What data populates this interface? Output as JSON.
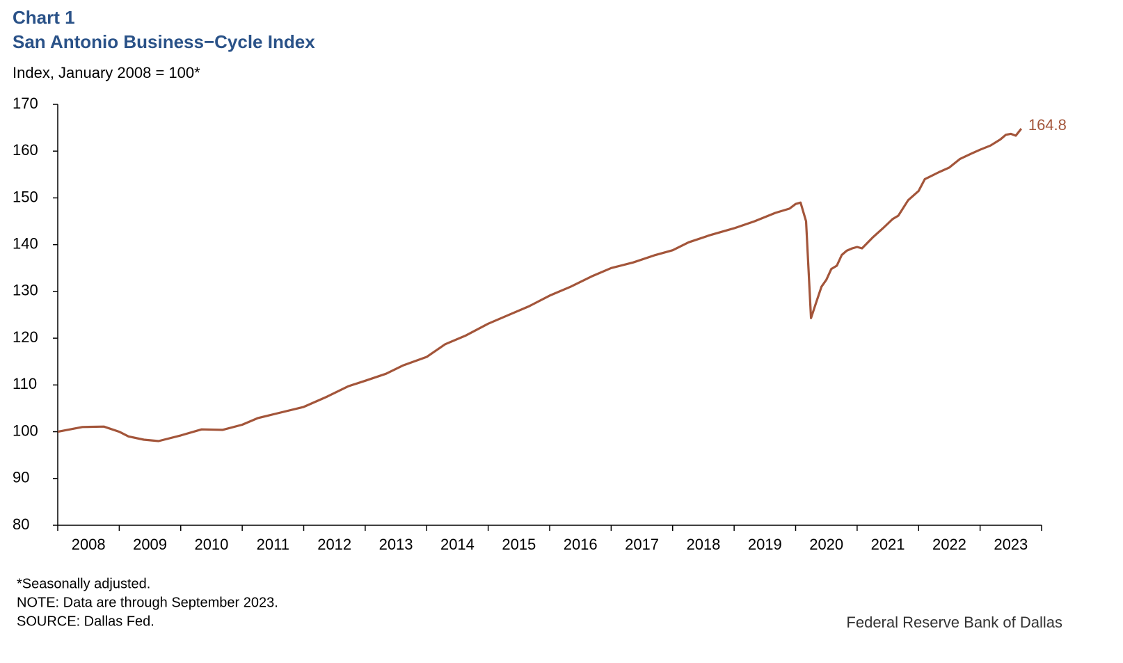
{
  "chart_data": {
    "type": "line",
    "title": "Chart 1",
    "subtitle": "San Antonio Business−Cycle Index",
    "y_label": "Index, January 2008 = 100*",
    "notes": [
      "*Seasonally adjusted.",
      "NOTE: Data are through September 2023.",
      "SOURCE: Dallas Fed."
    ],
    "brand": "Federal Reserve Bank of Dallas",
    "categories": [
      "2008",
      "2009",
      "2010",
      "2011",
      "2012",
      "2013",
      "2014",
      "2015",
      "2016",
      "2017",
      "2018",
      "2019",
      "2020",
      "2021",
      "2022",
      "2023"
    ],
    "xlim": [
      2008,
      2024
    ],
    "xticks": [
      2008,
      2009,
      2010,
      2011,
      2012,
      2013,
      2014,
      2015,
      2016,
      2017,
      2018,
      2019,
      2020,
      2021,
      2022,
      2023,
      2024
    ],
    "ylim": [
      80,
      170
    ],
    "yticks": [
      80,
      90,
      100,
      110,
      120,
      130,
      140,
      150,
      160,
      170
    ],
    "grid": false,
    "series": [
      {
        "name": "San Antonio Business-Cycle Index",
        "color": "#a3553a",
        "x": [
          2008.0,
          2008.4,
          2008.75,
          2009.0,
          2009.15,
          2009.4,
          2009.64,
          2010.0,
          2010.34,
          2010.68,
          2011.0,
          2011.25,
          2011.53,
          2012.0,
          2012.38,
          2012.72,
          2013.0,
          2013.34,
          2013.62,
          2014.0,
          2014.3,
          2014.64,
          2015.0,
          2015.32,
          2015.66,
          2016.0,
          2016.34,
          2016.68,
          2017.0,
          2017.36,
          2017.7,
          2018.0,
          2018.26,
          2018.6,
          2019.0,
          2019.33,
          2019.67,
          2019.9,
          2020.0,
          2020.08,
          2020.17,
          2020.25,
          2020.33,
          2020.42,
          2020.5,
          2020.58,
          2020.67,
          2020.75,
          2020.83,
          2020.92,
          2021.0,
          2021.08,
          2021.25,
          2021.42,
          2021.58,
          2021.67,
          2021.83,
          2022.0,
          2022.1,
          2022.33,
          2022.5,
          2022.67,
          2022.83,
          2023.0,
          2023.17,
          2023.33,
          2023.42,
          2023.5,
          2023.58,
          2023.67
        ],
        "values": [
          100,
          101,
          101.1,
          100,
          99,
          98.3,
          98,
          99.2,
          100.5,
          100.4,
          101.5,
          102.9,
          103.8,
          105.3,
          107.5,
          109.7,
          110.9,
          112.4,
          114.2,
          116,
          118.7,
          120.6,
          123.1,
          124.9,
          126.8,
          129.1,
          131,
          133.2,
          135,
          136.2,
          137.7,
          138.8,
          140.5,
          142,
          143.5,
          145,
          146.8,
          147.7,
          148.7,
          149,
          145,
          124.3,
          127.5,
          131,
          132.5,
          134.8,
          135.5,
          137.8,
          138.7,
          139.2,
          139.5,
          139.2,
          141.5,
          143.5,
          145.5,
          146.2,
          149.5,
          151.5,
          154,
          155.5,
          156.5,
          158.3,
          159.3,
          160.3,
          161.2,
          162.5,
          163.5,
          163.7,
          163.3,
          164.8
        ]
      }
    ],
    "annotations": [
      {
        "text": "164.8",
        "x": 2023.67,
        "y": 164.8
      }
    ]
  }
}
